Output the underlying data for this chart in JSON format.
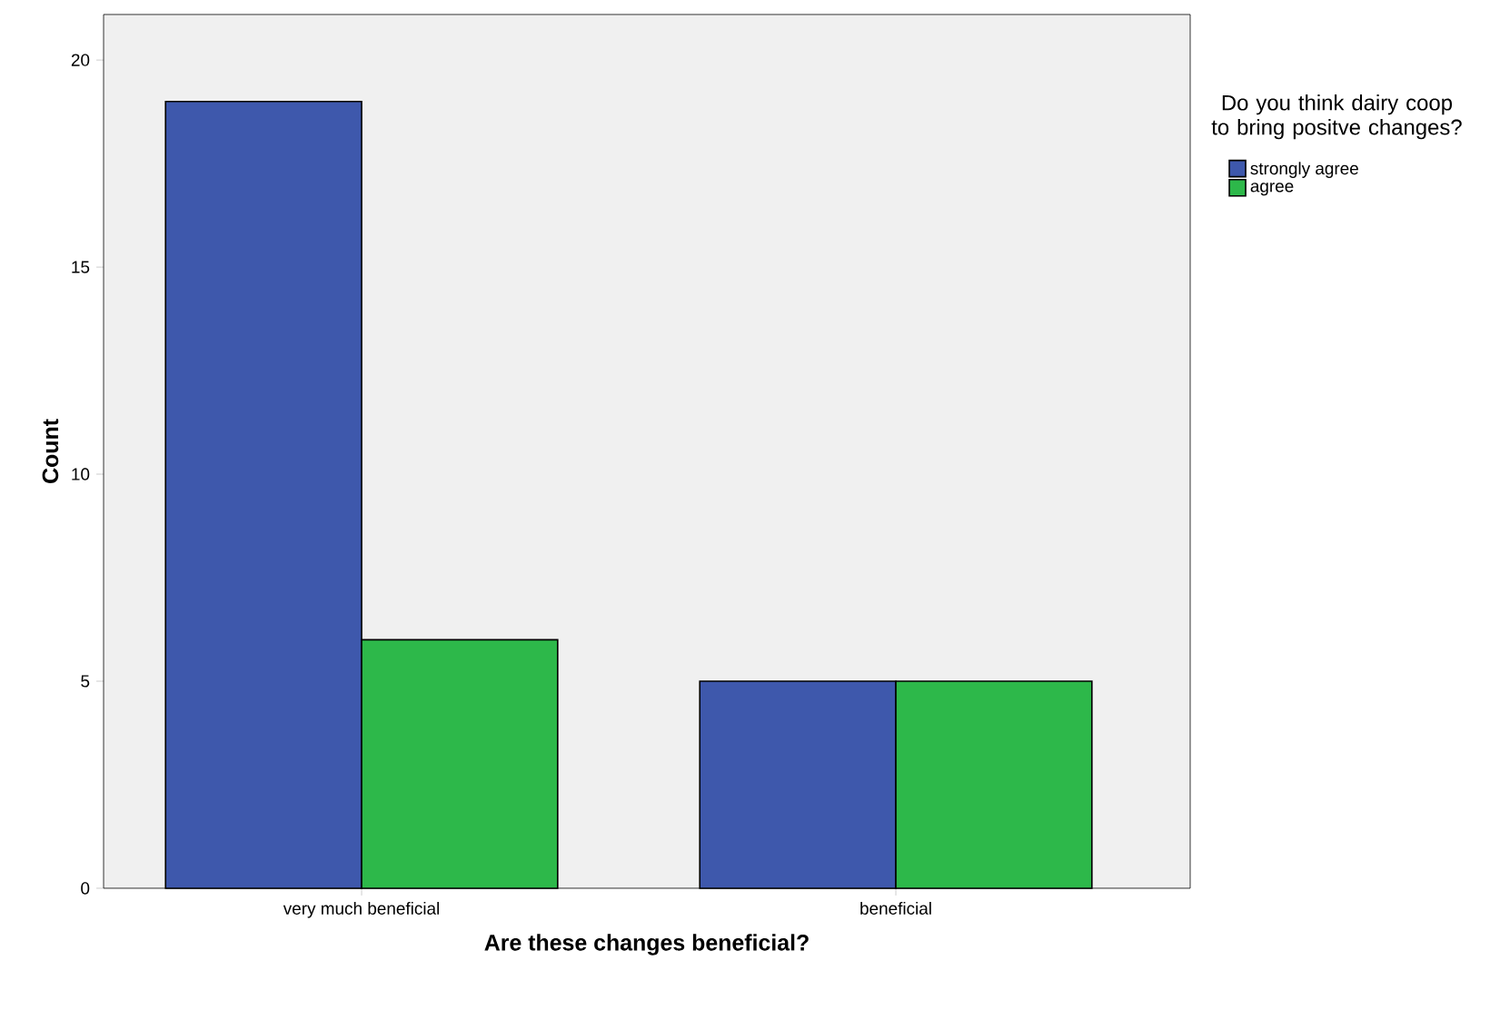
{
  "chart_data": {
    "type": "bar",
    "xlabel": "Are these changes beneficial?",
    "ylabel": "Count",
    "legend_title": "Do you think dairy coop to bring positve changes?",
    "categories": [
      "very much beneficial",
      "beneficial"
    ],
    "series": [
      {
        "name": "strongly agree",
        "color": "#3e58ac",
        "values": [
          19,
          5
        ]
      },
      {
        "name": "agree",
        "color": "#2db84a",
        "values": [
          6,
          5
        ]
      }
    ],
    "ylim": [
      0,
      21.1
    ],
    "yticks": [
      0,
      5,
      10,
      15,
      20
    ],
    "legend": "right"
  }
}
